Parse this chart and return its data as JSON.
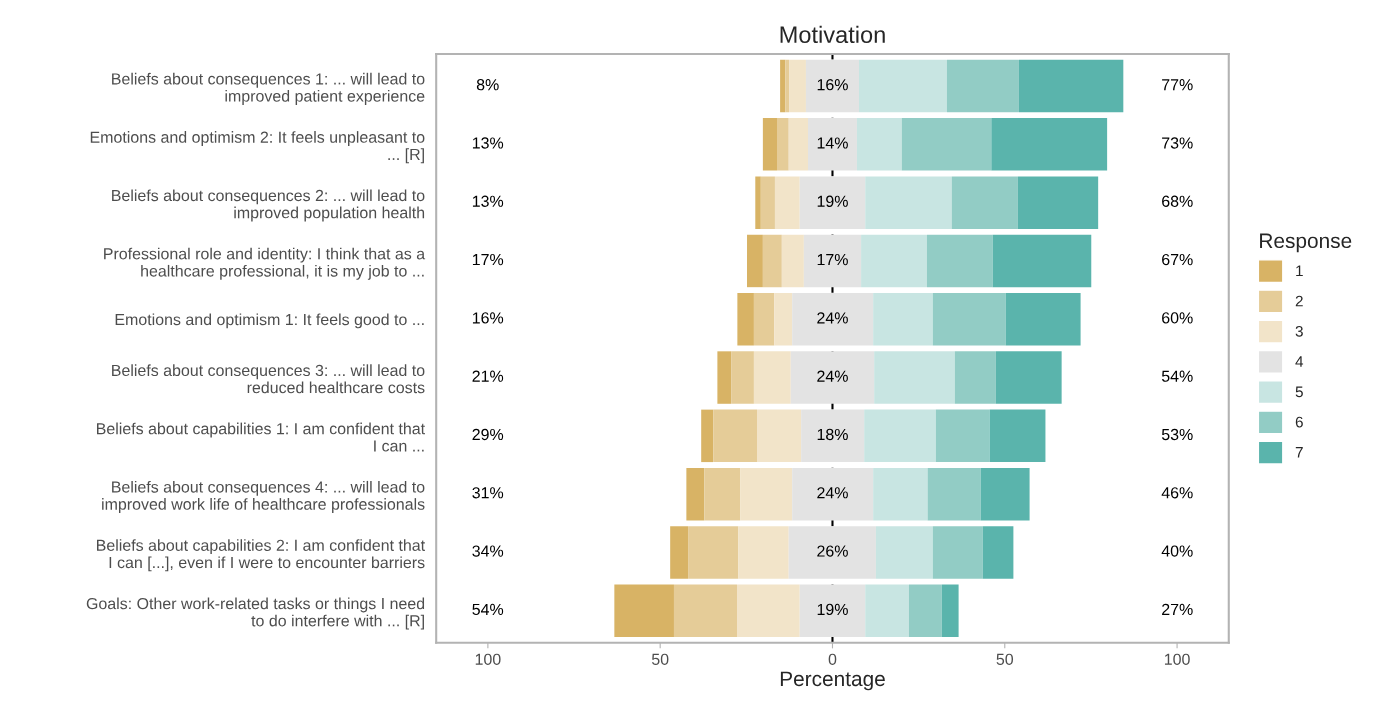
{
  "chart_data": {
    "type": "bar",
    "orientation": "horizontal",
    "title": "Motivation",
    "xlabel": "Percentage",
    "legend_title": "Response",
    "legend": "right",
    "grid": false,
    "categories": [
      "Beliefs about consequences 1: ... will lead to\nimproved patient experience",
      "Emotions and optimism 2: It feels unpleasant to\n... [R]",
      "Beliefs about consequences 2: ... will lead to\nimproved population health",
      "Professional role and identity: I think that as a\nhealthcare professional, it is my job to ...",
      "Emotions and optimism 1: It feels good to ...",
      "Beliefs about consequences 3: ... will lead to\nreduced healthcare costs",
      "Beliefs about capabilities 1: I am confident that\nI can ...",
      "Beliefs about consequences 4: ... will lead to\nimproved work life of healthcare professionals",
      "Beliefs about capabilities 2: I am confident that\nI can [...], even if I were to encounter barriers",
      "Goals: Other work-related tasks or things I need\nto do interfere with ... [R]"
    ],
    "xlim": [
      -115,
      115
    ],
    "xticks": [
      {
        "value": -100,
        "label": "100"
      },
      {
        "value": -50,
        "label": "50"
      },
      0,
      50,
      100
    ],
    "series": [
      {
        "name": "1",
        "color": "#d8b365",
        "values": [
          1.5,
          4.1,
          1.6,
          4.6,
          4.8,
          4.0,
          3.5,
          5.2,
          5.2,
          17.3
        ],
        "base": [
          -15.2,
          -20.2,
          -22.4,
          -24.8,
          -27.6,
          -33.4,
          -38.1,
          -42.4,
          -47.1,
          -63.3
        ]
      },
      {
        "name": "2",
        "color": "#e5cc98",
        "values": [
          1.1,
          3.4,
          4.1,
          5.5,
          5.9,
          6.6,
          12.7,
          10.4,
          14.6,
          18.3
        ],
        "base": [
          -13.7,
          -16.1,
          -20.8,
          -20.2,
          -22.8,
          -29.4,
          -34.6,
          -37.2,
          -41.9,
          -46.0
        ]
      },
      {
        "name": "3",
        "color": "#f2e4c9",
        "values": [
          4.9,
          5.6,
          7.2,
          6.4,
          5.2,
          10.7,
          12.8,
          15.1,
          14.6,
          18.2
        ],
        "base": [
          -12.6,
          -12.7,
          -16.7,
          -14.7,
          -16.9,
          -22.8,
          -21.9,
          -26.8,
          -27.3,
          -27.7
        ]
      },
      {
        "name": "4",
        "color": "#e3e3e3",
        "values": [
          15.4,
          14.2,
          19.0,
          16.6,
          23.5,
          24.2,
          18.3,
          23.5,
          25.3,
          19.0
        ],
        "base": [
          -7.7,
          -7.1,
          -9.5,
          -8.3,
          -11.7,
          -12.1,
          -9.1,
          -11.7,
          -12.7,
          -9.5
        ]
      },
      {
        "name": "5",
        "color": "#c8e5e2",
        "values": [
          25.5,
          13.0,
          25.1,
          19.1,
          17.3,
          23.4,
          20.8,
          15.8,
          16.5,
          12.7
        ],
        "base": [
          7.7,
          7.1,
          9.5,
          8.3,
          11.8,
          12.1,
          9.2,
          11.8,
          12.6,
          9.5
        ]
      },
      {
        "name": "6",
        "color": "#92ccc5",
        "values": [
          20.9,
          26.0,
          19.2,
          19.1,
          21.2,
          11.9,
          15.6,
          15.4,
          14.5,
          9.5
        ],
        "base": [
          33.2,
          20.1,
          34.6,
          27.4,
          29.1,
          35.5,
          30.0,
          27.6,
          29.1,
          22.2
        ]
      },
      {
        "name": "7",
        "color": "#5ab4ac",
        "values": [
          30.3,
          33.6,
          23.3,
          28.6,
          21.7,
          19.1,
          16.2,
          14.2,
          8.9,
          4.9
        ],
        "base": [
          54.1,
          46.1,
          53.8,
          46.5,
          50.3,
          47.4,
          45.6,
          43.0,
          43.6,
          31.7
        ]
      }
    ],
    "ref_lines": [
      {
        "axis": "x",
        "value": 0,
        "color": "#000000",
        "line_style": "dashed"
      }
    ],
    "annotations": [
      "8%",
      "16%",
      "77%",
      "13%",
      "14%",
      "73%",
      "13%",
      "19%",
      "68%",
      "17%",
      "17%",
      "67%",
      "16%",
      "24%",
      "60%",
      "21%",
      "24%",
      "54%",
      "29%",
      "18%",
      "53%",
      "31%",
      "24%",
      "46%",
      "34%",
      "26%",
      "40%",
      "54%",
      "19%",
      "27%"
    ]
  }
}
